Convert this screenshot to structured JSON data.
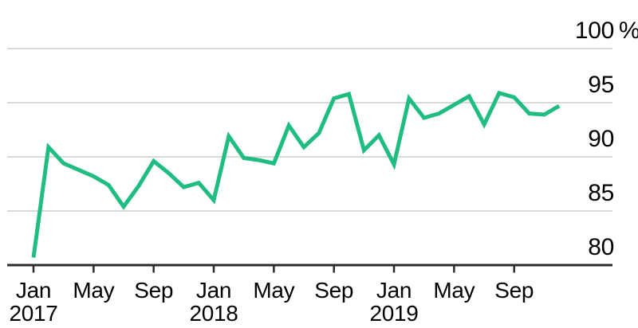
{
  "chart": {
    "colors": {
      "line": "#20bd82",
      "grid": "#d9d9d9",
      "axis": "#2b2b2b",
      "text": "#000000",
      "background": "#ffffff"
    }
  },
  "chart_data": {
    "type": "line",
    "y_unit": "%",
    "ylim": [
      80,
      100
    ],
    "yticks": [
      100,
      95,
      90,
      85,
      80
    ],
    "ytick_labels": [
      "100",
      "95",
      "90",
      "85",
      "80"
    ],
    "grid": true,
    "legend": false,
    "y_axis_side": "right",
    "x": [
      "Jan 2017",
      "Feb 2017",
      "Mar 2017",
      "Apr 2017",
      "May 2017",
      "Jun 2017",
      "Jul 2017",
      "Aug 2017",
      "Sep 2017",
      "Oct 2017",
      "Nov 2017",
      "Dec 2017",
      "Jan 2018",
      "Feb 2018",
      "Mar 2018",
      "Apr 2018",
      "May 2018",
      "Jun 2018",
      "Jul 2018",
      "Aug 2018",
      "Sep 2018",
      "Oct 2018",
      "Nov 2018",
      "Dec 2018",
      "Jan 2019",
      "Feb 2019",
      "Mar 2019",
      "Apr 2019",
      "May 2019",
      "Jun 2019",
      "Jul 2019",
      "Aug 2019",
      "Sep 2019",
      "Oct 2019",
      "Nov 2019",
      "Dec 2019"
    ],
    "values": [
      80.7,
      90.9,
      89.4,
      88.8,
      88.2,
      87.4,
      85.4,
      87.3,
      89.6,
      88.5,
      87.2,
      87.6,
      86.0,
      91.9,
      89.9,
      89.7,
      89.4,
      92.9,
      90.9,
      92.2,
      95.4,
      95.8,
      90.6,
      92.0,
      89.3,
      95.4,
      93.6,
      94.0,
      94.8,
      95.6,
      93.0,
      95.9,
      95.5,
      94.0,
      93.9,
      94.7
    ],
    "x_ticks": [
      {
        "index": 0,
        "label": "Jan",
        "year": "2017"
      },
      {
        "index": 4,
        "label": "May"
      },
      {
        "index": 8,
        "label": "Sep"
      },
      {
        "index": 12,
        "label": "Jan",
        "year": "2018"
      },
      {
        "index": 16,
        "label": "May"
      },
      {
        "index": 20,
        "label": "Sep"
      },
      {
        "index": 24,
        "label": "Jan",
        "year": "2019"
      },
      {
        "index": 28,
        "label": "May"
      },
      {
        "index": 32,
        "label": "Sep"
      }
    ]
  }
}
